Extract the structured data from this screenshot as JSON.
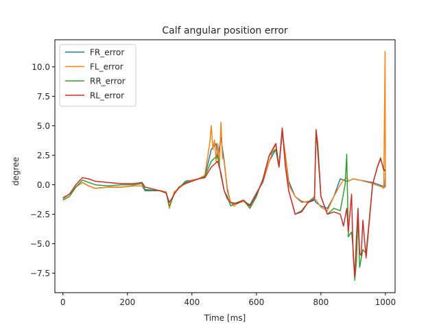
{
  "chart_data": {
    "type": "line",
    "title": "Calf angular position error",
    "xlabel": "Time [ms]",
    "ylabel": "degree",
    "xlim": [
      -25,
      1030
    ],
    "ylim": [
      -9.15,
      12.3
    ],
    "xticks": [
      0,
      200,
      400,
      600,
      800,
      1000
    ],
    "yticks": [
      -7.5,
      -5.0,
      -2.5,
      0.0,
      2.5,
      5.0,
      7.5,
      10.0
    ],
    "ytick_labels": [
      "−7.5",
      "−5.0",
      "−2.5",
      "0.0",
      "2.5",
      "5.0",
      "7.5",
      "10.0"
    ],
    "grid": false,
    "legend_position": "upper-left",
    "series": [
      {
        "name": "FR_error",
        "color": "#1f77b4",
        "x": [
          0,
          20,
          40,
          60,
          80,
          100,
          140,
          180,
          220,
          245,
          255,
          300,
          320,
          330,
          345,
          360,
          380,
          400,
          420,
          440,
          460,
          475,
          480,
          490,
          500,
          510,
          520,
          530,
          540,
          560,
          580,
          600,
          620,
          640,
          660,
          670,
          680,
          690,
          700,
          720,
          740,
          760,
          780,
          785,
          800,
          820,
          840,
          860,
          880,
          885,
          900,
          920,
          960,
          980,
          990,
          998,
          1000
        ],
        "y": [
          -1.2,
          -0.8,
          -0.2,
          0.2,
          -0.1,
          -0.3,
          -0.2,
          -0.2,
          -0.1,
          -0.1,
          -0.5,
          -0.5,
          -0.6,
          -1.9,
          -0.7,
          -0.3,
          0.3,
          0.4,
          0.5,
          0.7,
          3.0,
          3.5,
          2.2,
          4.0,
          2.0,
          -0.5,
          -1.5,
          -1.6,
          -1.5,
          -1.4,
          -1.7,
          -0.7,
          0.2,
          2.0,
          3.0,
          1.5,
          4.4,
          2.5,
          0.3,
          -1.0,
          -1.4,
          -1.5,
          -1.3,
          -1.5,
          -1.8,
          -2.0,
          -1.0,
          0.5,
          0.3,
          0.3,
          0.5,
          0.4,
          0.2,
          0.0,
          -0.1,
          -0.2,
          1.0
        ]
      },
      {
        "name": "FL_error",
        "color": "#ff7f0e",
        "x": [
          0,
          20,
          40,
          60,
          80,
          100,
          140,
          180,
          220,
          245,
          255,
          300,
          320,
          330,
          345,
          360,
          380,
          400,
          420,
          440,
          455,
          460,
          465,
          470,
          475,
          480,
          485,
          490,
          495,
          500,
          505,
          510,
          520,
          530,
          540,
          560,
          580,
          600,
          620,
          640,
          660,
          670,
          680,
          690,
          700,
          720,
          740,
          760,
          780,
          785,
          800,
          820,
          840,
          860,
          870,
          880,
          885,
          900,
          920,
          960,
          980,
          990,
          995,
          999,
          1000
        ],
        "y": [
          -1.2,
          -0.8,
          -0.2,
          0.2,
          -0.1,
          -0.3,
          -0.2,
          -0.2,
          -0.1,
          -0.1,
          -0.4,
          -0.5,
          -0.6,
          -2.0,
          -0.6,
          -0.3,
          0.2,
          0.4,
          0.5,
          0.8,
          3.5,
          5.0,
          3.0,
          3.8,
          2.0,
          3.5,
          1.5,
          5.3,
          2.2,
          2.2,
          0.8,
          -0.3,
          -1.5,
          -1.8,
          -1.6,
          -1.4,
          -1.8,
          -0.8,
          0.3,
          2.0,
          3.5,
          1.5,
          4.5,
          2.5,
          0.0,
          -1.0,
          -1.5,
          -1.4,
          -1.2,
          -1.3,
          -1.9,
          -2.2,
          -1.0,
          0.0,
          0.4,
          0.6,
          0.3,
          0.5,
          0.4,
          0.1,
          -0.1,
          -0.2,
          -0.3,
          11.3,
          -0.2
        ]
      },
      {
        "name": "RR_error",
        "color": "#2ca02c",
        "x": [
          0,
          20,
          40,
          60,
          80,
          100,
          140,
          180,
          220,
          245,
          255,
          300,
          320,
          330,
          345,
          360,
          380,
          400,
          420,
          440,
          460,
          480,
          490,
          500,
          510,
          520,
          540,
          560,
          580,
          600,
          620,
          640,
          660,
          670,
          680,
          690,
          700,
          720,
          740,
          760,
          780,
          785,
          800,
          820,
          840,
          860,
          875,
          880,
          885,
          895,
          900,
          905,
          910,
          915,
          920,
          930,
          940,
          960,
          975,
          985,
          995,
          1000
        ],
        "y": [
          -1.3,
          -1.0,
          -0.2,
          0.4,
          0.2,
          0.0,
          -0.1,
          0.0,
          0.0,
          0.1,
          -0.4,
          -0.5,
          -0.7,
          -1.8,
          -0.8,
          -0.2,
          0.2,
          0.3,
          0.5,
          0.7,
          2.0,
          2.5,
          0.8,
          -0.5,
          -1.0,
          -1.8,
          -1.5,
          -1.3,
          -2.0,
          -1.0,
          0.5,
          2.5,
          3.0,
          1.5,
          4.8,
          1.5,
          -0.5,
          -2.5,
          -2.2,
          -1.5,
          -1.0,
          4.7,
          -1.0,
          -2.5,
          -2.0,
          -2.2,
          0.0,
          2.6,
          -4.4,
          -4.0,
          -5.5,
          -8.1,
          -6.5,
          -2.5,
          -7.0,
          -5.5,
          -5.8,
          0.0,
          1.5,
          2.3,
          1.2,
          1.2
        ]
      },
      {
        "name": "RL_error",
        "color": "#d62728",
        "x": [
          0,
          20,
          40,
          60,
          80,
          100,
          140,
          180,
          220,
          245,
          255,
          300,
          320,
          330,
          345,
          360,
          380,
          400,
          420,
          440,
          460,
          480,
          490,
          500,
          510,
          520,
          540,
          560,
          580,
          600,
          620,
          640,
          660,
          670,
          680,
          690,
          700,
          720,
          740,
          760,
          780,
          785,
          790,
          800,
          820,
          840,
          860,
          870,
          880,
          885,
          895,
          900,
          905,
          910,
          915,
          920,
          925,
          930,
          940,
          960,
          975,
          985,
          995,
          1000
        ],
        "y": [
          -1.1,
          -0.8,
          0.0,
          0.6,
          0.5,
          0.3,
          0.2,
          0.1,
          0.1,
          0.2,
          -0.2,
          -0.5,
          -0.7,
          -1.5,
          -0.8,
          -0.2,
          0.1,
          0.3,
          0.5,
          0.6,
          1.5,
          2.0,
          1.0,
          -0.5,
          -1.2,
          -1.5,
          -1.6,
          -1.3,
          -1.8,
          -0.8,
          0.4,
          2.5,
          3.5,
          1.5,
          4.8,
          1.5,
          -0.5,
          -2.5,
          -2.3,
          -1.5,
          -1.2,
          4.6,
          3.5,
          -1.0,
          -2.5,
          -2.3,
          -2.5,
          -3.5,
          -2.0,
          -4.0,
          -0.8,
          -6.0,
          -7.8,
          -4.5,
          -2.0,
          -5.8,
          -6.0,
          -3.0,
          -6.2,
          0.0,
          1.5,
          2.2,
          1.3,
          1.2
        ]
      }
    ]
  }
}
